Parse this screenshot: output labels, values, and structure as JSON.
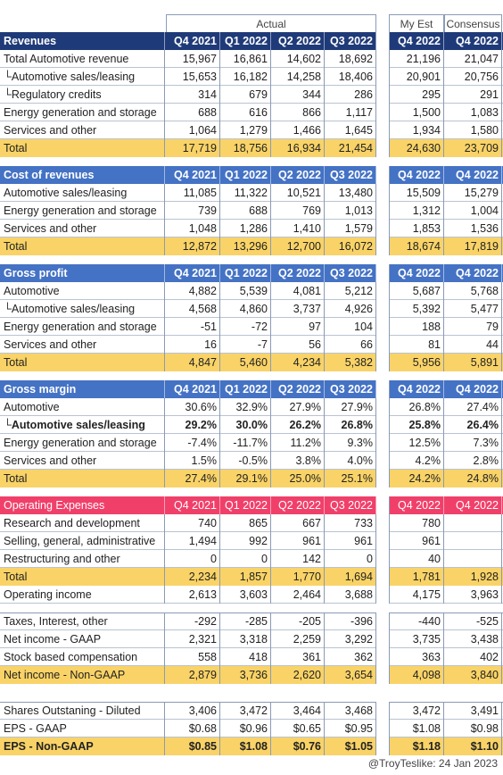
{
  "groups": {
    "actual": "Actual",
    "my_est": "My Est",
    "consensus": "Consensus"
  },
  "sections": [
    {
      "id": "revenues",
      "style": "dark",
      "header": [
        "Revenues",
        "Q4 2021",
        "Q1 2022",
        "Q2 2022",
        "Q3 2022",
        "Q4 2022",
        "Q4 2022"
      ],
      "rows": [
        {
          "label": "Total Automotive revenue",
          "values": [
            "15,967",
            "16,861",
            "14,602",
            "18,692",
            "21,196",
            "21,047"
          ]
        },
        {
          "label": "└Automotive sales/leasing",
          "values": [
            "15,653",
            "16,182",
            "14,258",
            "18,406",
            "20,901",
            "20,756"
          ]
        },
        {
          "label": "└Regulatory credits",
          "values": [
            "314",
            "679",
            "344",
            "286",
            "295",
            "291"
          ]
        },
        {
          "label": "Energy generation and storage",
          "values": [
            "688",
            "616",
            "866",
            "1,117",
            "1,500",
            "1,083"
          ]
        },
        {
          "label": "Services and other",
          "values": [
            "1,064",
            "1,279",
            "1,466",
            "1,645",
            "1,934",
            "1,580"
          ]
        },
        {
          "label": "Total",
          "total": true,
          "values": [
            "17,719",
            "18,756",
            "16,934",
            "21,454",
            "24,630",
            "23,709"
          ]
        }
      ]
    },
    {
      "id": "cost",
      "style": "blue",
      "header": [
        "Cost of revenues",
        "Q4 2021",
        "Q1 2022",
        "Q2 2022",
        "Q3 2022",
        "Q4 2022",
        "Q4 2022"
      ],
      "rows": [
        {
          "label": "Automotive sales/leasing",
          "values": [
            "11,085",
            "11,322",
            "10,521",
            "13,480",
            "15,509",
            "15,279"
          ]
        },
        {
          "label": "Energy generation and storage",
          "values": [
            "739",
            "688",
            "769",
            "1,013",
            "1,312",
            "1,004"
          ]
        },
        {
          "label": "Services and other",
          "values": [
            "1,048",
            "1,286",
            "1,410",
            "1,579",
            "1,853",
            "1,536"
          ]
        },
        {
          "label": "Total",
          "total": true,
          "values": [
            "12,872",
            "13,296",
            "12,700",
            "16,072",
            "18,674",
            "17,819"
          ]
        }
      ]
    },
    {
      "id": "gross_profit",
      "style": "blue",
      "header": [
        "Gross profit",
        "Q4 2021",
        "Q1 2022",
        "Q2 2022",
        "Q3 2022",
        "Q4 2022",
        "Q4 2022"
      ],
      "rows": [
        {
          "label": "Automotive",
          "values": [
            "4,882",
            "5,539",
            "4,081",
            "5,212",
            "5,687",
            "5,768"
          ]
        },
        {
          "label": "└Automotive sales/leasing",
          "values": [
            "4,568",
            "4,860",
            "3,737",
            "4,926",
            "5,392",
            "5,477"
          ]
        },
        {
          "label": "Energy generation and storage",
          "values": [
            "-51",
            "-72",
            "97",
            "104",
            "188",
            "79"
          ]
        },
        {
          "label": "Services and other",
          "values": [
            "16",
            "-7",
            "56",
            "66",
            "81",
            "44"
          ]
        },
        {
          "label": "Total",
          "total": true,
          "values": [
            "4,847",
            "5,460",
            "4,234",
            "5,382",
            "5,956",
            "5,891"
          ]
        }
      ]
    },
    {
      "id": "gross_margin",
      "style": "blue",
      "header": [
        "Gross margin",
        "Q4 2021",
        "Q1 2022",
        "Q2 2022",
        "Q3 2022",
        "Q4 2022",
        "Q4 2022"
      ],
      "rows": [
        {
          "label": "Automotive",
          "values": [
            "30.6%",
            "32.9%",
            "27.9%",
            "27.9%",
            "26.8%",
            "27.4%"
          ]
        },
        {
          "label": "└Automotive sales/leasing",
          "bold": true,
          "values": [
            "29.2%",
            "30.0%",
            "26.2%",
            "26.8%",
            "25.8%",
            "26.4%"
          ]
        },
        {
          "label": "Energy generation and storage",
          "values": [
            "-7.4%",
            "-11.7%",
            "11.2%",
            "9.3%",
            "12.5%",
            "7.3%"
          ]
        },
        {
          "label": "Services and other",
          "values": [
            "1.5%",
            "-0.5%",
            "3.8%",
            "4.0%",
            "4.2%",
            "2.8%"
          ]
        },
        {
          "label": "Total",
          "total": true,
          "values": [
            "27.4%",
            "29.1%",
            "25.0%",
            "25.1%",
            "24.2%",
            "24.8%"
          ]
        }
      ]
    },
    {
      "id": "opex",
      "style": "red",
      "header": [
        "Operating Expenses",
        "Q4 2021",
        "Q1 2022",
        "Q2 2022",
        "Q3 2022",
        "Q4 2022",
        "Q4 2022"
      ],
      "rows": [
        {
          "label": "Research and development",
          "values": [
            "740",
            "865",
            "667",
            "733",
            "780",
            ""
          ]
        },
        {
          "label": "Selling, general, administrative",
          "values": [
            "1,494",
            "992",
            "961",
            "961",
            "961",
            ""
          ]
        },
        {
          "label": "Restructuring and other",
          "values": [
            "0",
            "0",
            "142",
            "0",
            "40",
            ""
          ]
        },
        {
          "label": "Total",
          "total": true,
          "values": [
            "2,234",
            "1,857",
            "1,770",
            "1,694",
            "1,781",
            "1,928"
          ]
        },
        {
          "label": "Operating income",
          "values": [
            "2,613",
            "3,603",
            "2,464",
            "3,688",
            "4,175",
            "3,963"
          ]
        }
      ]
    },
    {
      "id": "net_income",
      "style": "none",
      "rows": [
        {
          "label": "Taxes, Interest, other",
          "values": [
            "-292",
            "-285",
            "-205",
            "-396",
            "-440",
            "-525"
          ]
        },
        {
          "label": "Net income - GAAP",
          "values": [
            "2,321",
            "3,318",
            "2,259",
            "3,292",
            "3,735",
            "3,438"
          ]
        },
        {
          "label": "Stock based compensation",
          "values": [
            "558",
            "418",
            "361",
            "362",
            "363",
            "402"
          ]
        },
        {
          "label": "Net income - Non-GAAP",
          "total": true,
          "values": [
            "2,879",
            "3,736",
            "2,620",
            "3,654",
            "4,098",
            "3,840"
          ]
        }
      ]
    },
    {
      "id": "eps",
      "style": "none",
      "rows": [
        {
          "label": "Shares Outstaning - Diluted",
          "values": [
            "3,406",
            "3,472",
            "3,464",
            "3,468",
            "3,472",
            "3,491"
          ]
        },
        {
          "label": "EPS - GAAP",
          "values": [
            "$0.68",
            "$0.96",
            "$0.65",
            "$0.95",
            "$1.08",
            "$0.98"
          ]
        },
        {
          "label": "EPS - Non-GAAP",
          "total": true,
          "bold": true,
          "values": [
            "$0.85",
            "$1.08",
            "$0.76",
            "$1.05",
            "$1.18",
            "$1.10"
          ]
        }
      ]
    }
  ],
  "credit": "@TroyTeslike: 24 Jan 2023",
  "colors": {
    "dark_header": "#1f3a78",
    "blue_header": "#4472c4",
    "red_header": "#f0406a",
    "total_row": "#f9d367"
  }
}
